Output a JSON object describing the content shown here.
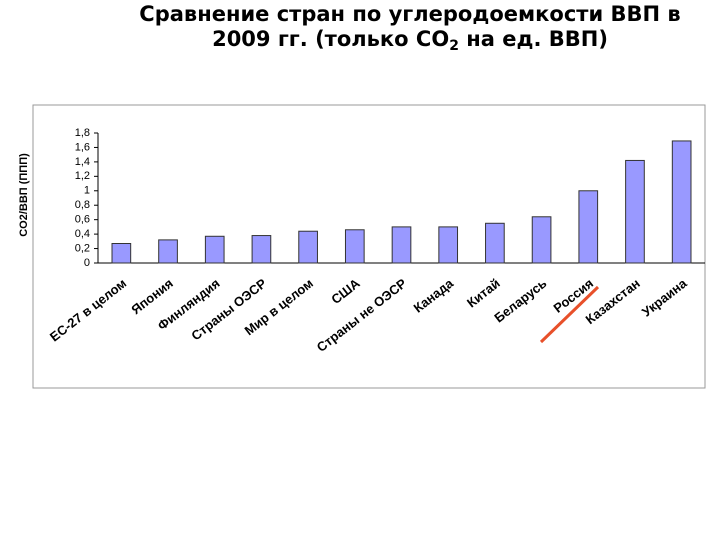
{
  "chart_data": {
    "type": "bar",
    "title": [
      "Сравнение стран по углеродоемкости ВВП в 2009 гг. (только CO",
      "2",
      " на ед. ВВП)"
    ],
    "y_label": "CO2/ВВП (ППП)",
    "categories": [
      "ЕС-27 в целом",
      "Япония",
      "Финляндия",
      "Страны ОЭСР",
      "Мир в целом",
      "США",
      "Страны не ОЭСР",
      "Канада",
      "Китай",
      "Беларусь",
      "Россия",
      "Казахстан",
      "Украина"
    ],
    "values": [
      0.27,
      0.32,
      0.37,
      0.38,
      0.44,
      0.46,
      0.5,
      0.5,
      0.55,
      0.64,
      1.0,
      1.42,
      1.69
    ],
    "color": "#9999ff",
    "ylim": [
      0,
      1.8
    ],
    "yticks": [
      0,
      {
        "value": 0.2,
        "label": "0,2"
      },
      {
        "value": 0.4,
        "label": "0,4"
      },
      {
        "value": 0.6,
        "label": "0,6"
      },
      {
        "value": 0.8,
        "label": "0,8"
      },
      1,
      {
        "value": 1.2,
        "label": "1,2"
      },
      {
        "value": 1.4,
        "label": "1,4"
      },
      {
        "value": 1.6,
        "label": "1,6"
      },
      {
        "value": 1.8,
        "label": "1,8"
      }
    ],
    "grid": false
  }
}
